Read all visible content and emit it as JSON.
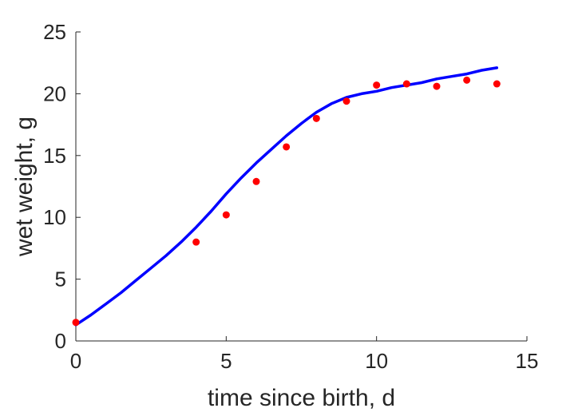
{
  "chart_data": {
    "type": "scatter",
    "title": "",
    "xlabel": "time since birth, d",
    "ylabel": "wet weight, g",
    "xlim": [
      0,
      15
    ],
    "ylim": [
      0,
      25
    ],
    "xticks": [
      0,
      5,
      10,
      15
    ],
    "yticks": [
      0,
      5,
      10,
      15,
      20,
      25
    ],
    "grid": false,
    "legend": "none",
    "series": [
      {
        "kind": "points",
        "color": "#ff0000",
        "x": [
          0,
          4,
          5,
          6,
          7,
          8,
          9,
          10,
          11,
          12,
          13,
          14
        ],
        "y": [
          1.5,
          8.0,
          10.2,
          12.9,
          15.7,
          18.0,
          19.4,
          20.7,
          20.8,
          20.6,
          21.1,
          20.8
        ]
      },
      {
        "kind": "line",
        "color": "#0000ff",
        "x": [
          0,
          0.5,
          1,
          1.5,
          2,
          2.5,
          3,
          3.5,
          4,
          4.5,
          5,
          5.5,
          6,
          6.5,
          7,
          7.5,
          8,
          8.5,
          9,
          9.5,
          10,
          10.5,
          11,
          11.5,
          12,
          12.5,
          13,
          13.5,
          14
        ],
        "y": [
          1.3,
          2.1,
          3.0,
          3.9,
          4.9,
          5.9,
          6.9,
          8.0,
          9.2,
          10.5,
          11.9,
          13.2,
          14.4,
          15.5,
          16.6,
          17.6,
          18.5,
          19.2,
          19.7,
          20.0,
          20.2,
          20.5,
          20.7,
          20.9,
          21.2,
          21.4,
          21.6,
          21.9,
          22.1
        ]
      }
    ]
  }
}
